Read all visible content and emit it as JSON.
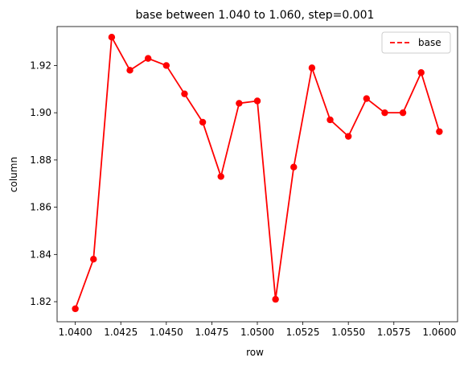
{
  "chart_data": {
    "type": "line",
    "title": "base between 1.040 to 1.060, step=0.001",
    "xlabel": "row",
    "ylabel": "column",
    "xlim": [
      1.039,
      1.061
    ],
    "ylim": [
      1.8115,
      1.9365
    ],
    "x_ticks": [
      1.04,
      1.0425,
      1.045,
      1.0475,
      1.05,
      1.0525,
      1.055,
      1.0575,
      1.06
    ],
    "x_tick_labels": [
      "1.0400",
      "1.0425",
      "1.0450",
      "1.0475",
      "1.0500",
      "1.0525",
      "1.0550",
      "1.0575",
      "1.0600"
    ],
    "y_ticks": [
      1.82,
      1.84,
      1.86,
      1.88,
      1.9,
      1.92
    ],
    "y_tick_labels": [
      "1.82",
      "1.84",
      "1.86",
      "1.88",
      "1.90",
      "1.92"
    ],
    "grid": false,
    "legend_position": "top-right",
    "series": [
      {
        "name": "base",
        "color": "#ff0000",
        "legend_style": "dashed",
        "marker": "circle",
        "x": [
          1.04,
          1.041,
          1.042,
          1.043,
          1.044,
          1.045,
          1.046,
          1.047,
          1.048,
          1.049,
          1.05,
          1.051,
          1.052,
          1.053,
          1.054,
          1.055,
          1.056,
          1.057,
          1.058,
          1.059,
          1.06
        ],
        "y": [
          1.817,
          1.838,
          1.932,
          1.918,
          1.923,
          1.92,
          1.908,
          1.896,
          1.873,
          1.904,
          1.905,
          1.821,
          1.877,
          1.919,
          1.897,
          1.89,
          1.906,
          1.9,
          1.9,
          1.917,
          1.892
        ]
      }
    ]
  }
}
